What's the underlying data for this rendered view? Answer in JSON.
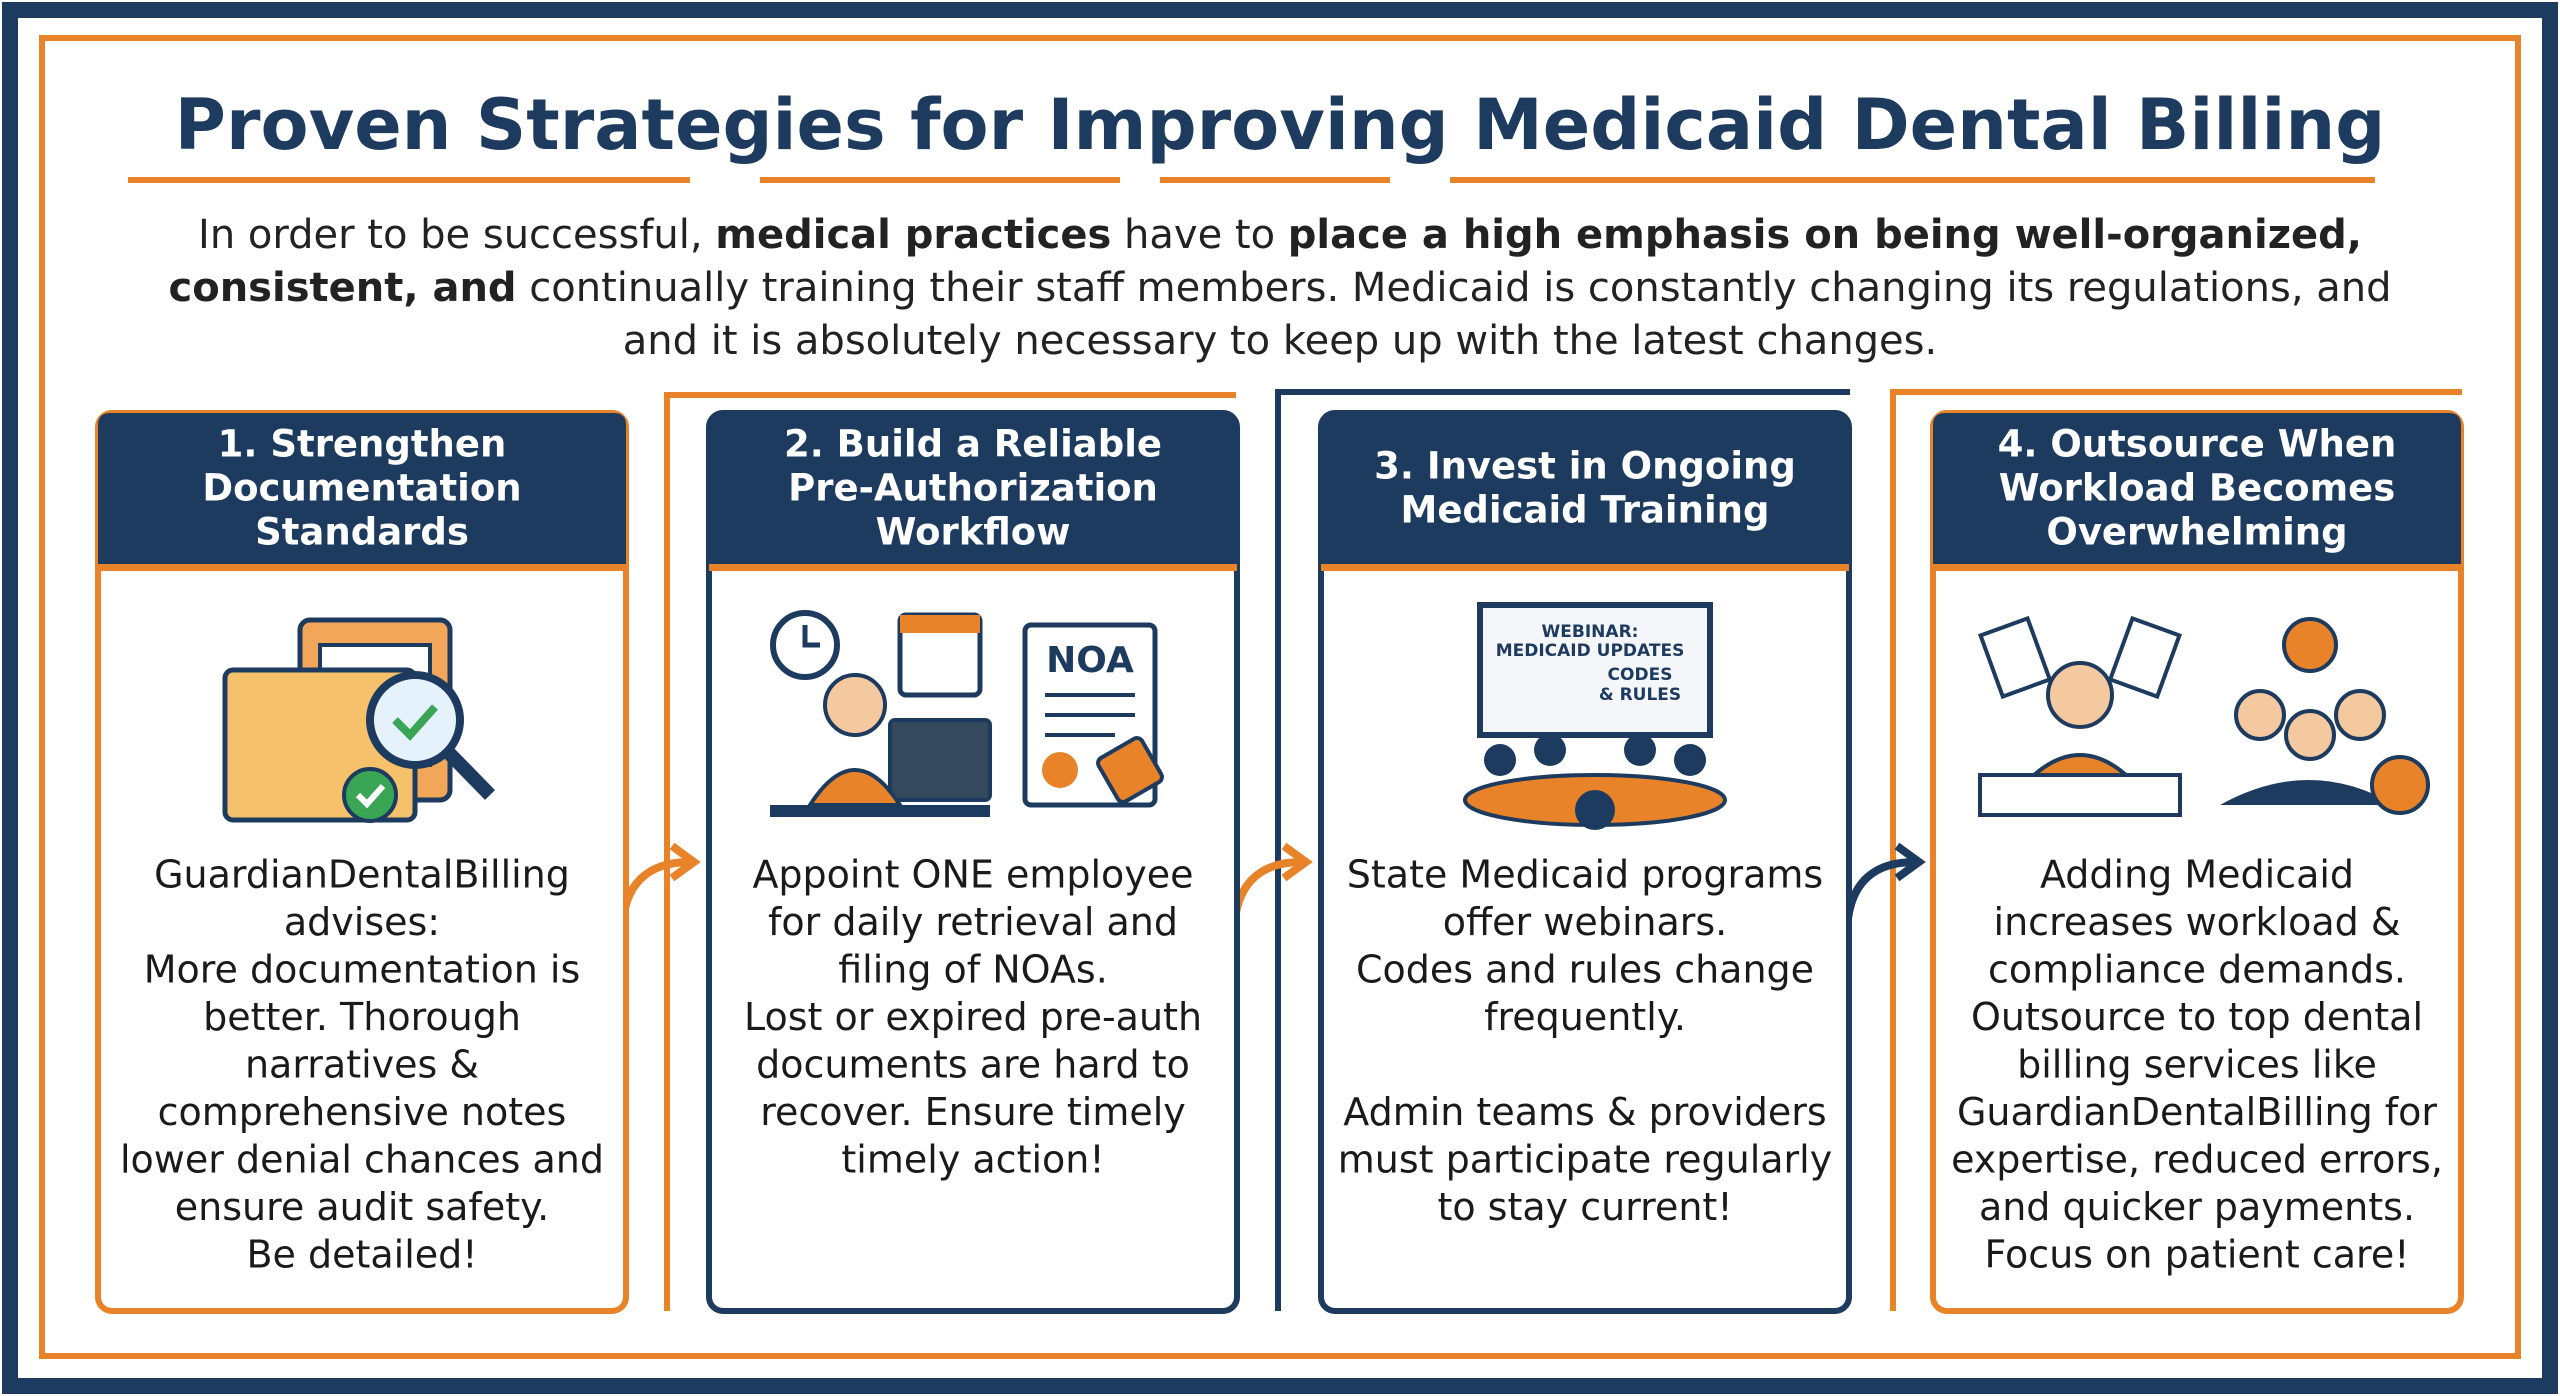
{
  "title": "Proven Strategies for Improving Medicaid Dental Billing",
  "intro": [
    [
      {
        "text": "In order to be successful, ",
        "bold": false
      },
      {
        "text": "medical practices",
        "bold": true
      },
      {
        "text": " have to ",
        "bold": false
      },
      {
        "text": "place a high emphasis on being well-organized,",
        "bold": true
      }
    ],
    [
      {
        "text": "consistent, and",
        "bold": true
      },
      {
        "text": " continually training their staff members. Medicaid is constantly changing its regulations, and",
        "bold": false
      }
    ],
    [
      {
        "text": "and it is absolutely necessary to keep up with the latest changes.",
        "bold": false
      }
    ]
  ],
  "cards": [
    {
      "heading": [
        "1. Strengthen",
        "Documentation",
        "Standards"
      ],
      "accent": "#e8832a",
      "body": [
        [
          "GuardianDentalBilling",
          "advises:",
          "More documentation is",
          "better. Thorough",
          "narratives &",
          "comprehensive notes",
          "lower denial chances and",
          "ensure audit safety.",
          "Be detailed!"
        ]
      ]
    },
    {
      "heading": [
        "2. Build a Reliable",
        "Pre-Authorization",
        "Workflow"
      ],
      "accent": "#1d3a5f",
      "icon_text": [
        "NOA"
      ],
      "body": [
        [
          "Appoint ONE employee",
          "for daily retrieval and",
          "filing of NOAs.",
          "Lost or expired pre-auth",
          "documents are hard to",
          "recover. Ensure timely",
          "timely action!"
        ]
      ]
    },
    {
      "heading": [
        "3. Invest in Ongoing",
        "Medicaid Training"
      ],
      "accent": "#1d3a5f",
      "icon_text": [
        "WEBINAR:",
        "MEDICAID UPDATES",
        "CODES",
        "& RULES"
      ],
      "body": [
        [
          "State Medicaid programs",
          "offer webinars.",
          "Codes and rules change",
          "frequently."
        ],
        [
          "Admin teams & providers",
          "must participate regularly",
          "to stay current!"
        ]
      ]
    },
    {
      "heading": [
        "4. Outsource When",
        "Workload Becomes",
        "Overwhelming"
      ],
      "accent": "#e8832a",
      "body": [
        [
          "Adding Medicaid",
          "increases workload &",
          "compliance demands.",
          "Outsource to top dental",
          "billing services like",
          "GuardianDentalBilling for",
          "expertise, reduced errors,",
          "and quicker payments.",
          "Focus on patient care!"
        ]
      ]
    }
  ]
}
